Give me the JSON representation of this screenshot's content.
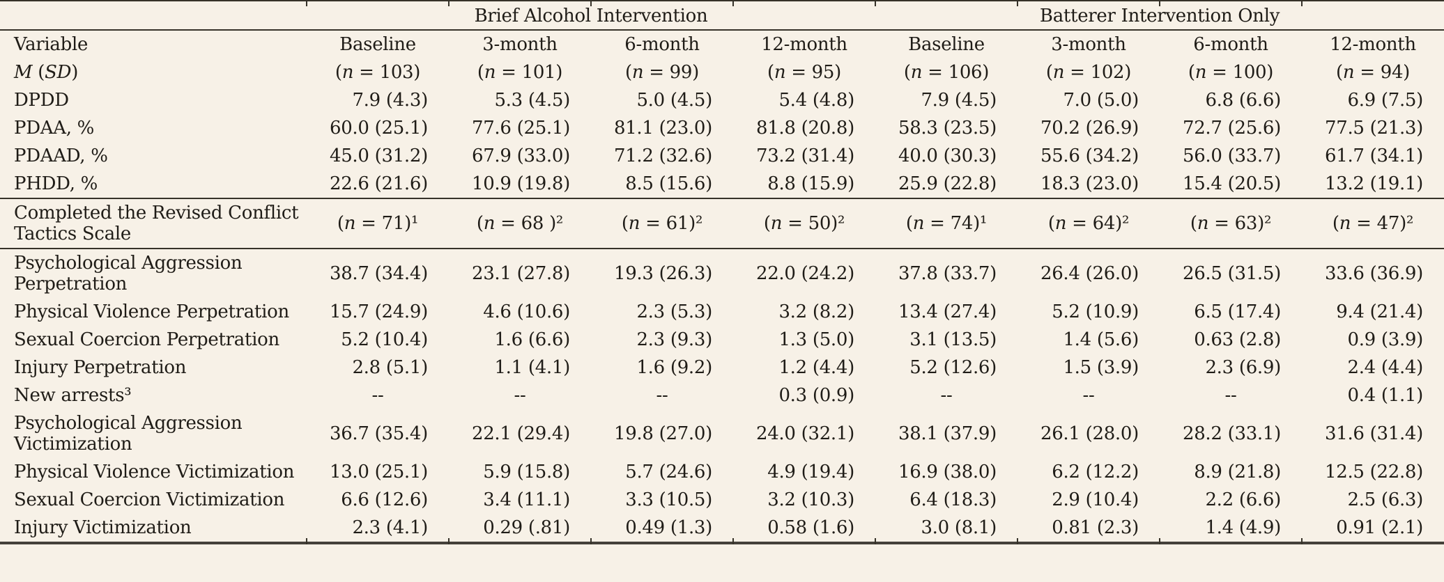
{
  "colors": {
    "background": "#f7f1e7",
    "text": "#1f1c17",
    "rule": "#363229"
  },
  "table": {
    "group_headers": [
      {
        "label": "Brief Alcohol Intervention",
        "span": 4
      },
      {
        "label": "Batterer Intervention Only",
        "span": 4
      }
    ],
    "column_headers": [
      "Variable",
      "Baseline",
      "3-month",
      "6-month",
      "12-month",
      "Baseline",
      "3-month",
      "6-month",
      "12-month"
    ],
    "rows": [
      {
        "label": "*M* (*SD*)",
        "align": "center",
        "cells": [
          "(*n* = 103)",
          "(*n* = 101)",
          "(*n* = 99)",
          "(*n* = 95)",
          "(*n* = 106)",
          "(*n* = 102)",
          "(*n* = 100)",
          "(*n* = 94)"
        ]
      },
      {
        "label": "DPDD",
        "cells": [
          "7.9 (4.3)",
          "5.3 (4.5)",
          "5.0 (4.5)",
          "5.4 (4.8)",
          "7.9 (4.5)",
          "7.0 (5.0)",
          "6.8 (6.6)",
          "6.9 (7.5)"
        ]
      },
      {
        "label": "PDAA, %",
        "cells": [
          "60.0 (25.1)",
          "77.6 (25.1)",
          "81.1 (23.0)",
          "81.8 (20.8)",
          "58.3 (23.5)",
          "70.2 (26.9)",
          "72.7 (25.6)",
          "77.5 (21.3)"
        ]
      },
      {
        "label": "PDAAD, %",
        "cells": [
          "45.0 (31.2)",
          "67.9 (33.0)",
          "71.2 (32.6)",
          "73.2 (31.4)",
          "40.0 (30.3)",
          "55.6 (34.2)",
          "56.0 (33.7)",
          "61.7 (34.1)"
        ]
      },
      {
        "label": "PHDD, %",
        "cells": [
          "22.6 (21.6)",
          "10.9 (19.8)",
          "8.5 (15.6)",
          "8.8 (15.9)",
          "25.9 (22.8)",
          "18.3 (23.0)",
          "15.4 (20.5)",
          "13.2 (19.1)"
        ]
      },
      {
        "label": "Completed the Revised Conflict Tactics Scale",
        "align": "center",
        "divider": true,
        "cells": [
          "(*n* = 71)¹",
          "(*n* = 68 )²",
          "(*n* = 61)²",
          "(*n* = 50)²",
          "(*n* = 74)¹",
          "(*n* = 64)²",
          "(*n* = 63)²",
          "(*n* = 47)²"
        ]
      },
      {
        "label": "Psychological Aggression Perpetration",
        "cells": [
          "38.7 (34.4)",
          "23.1 (27.8)",
          "19.3 (26.3)",
          "22.0 (24.2)",
          "37.8 (33.7)",
          "26.4 (26.0)",
          "26.5 (31.5)",
          "33.6 (36.9)"
        ]
      },
      {
        "label": "Physical Violence Perpetration",
        "cells": [
          "15.7 (24.9)",
          "4.6 (10.6)",
          "2.3 (5.3)",
          "3.2 (8.2)",
          "13.4 (27.4)",
          "5.2 (10.9)",
          "6.5 (17.4)",
          "9.4 (21.4)"
        ]
      },
      {
        "label": "Sexual Coercion Perpetration",
        "cells": [
          "5.2 (10.4)",
          "1.6 (6.6)",
          "2.3 (9.3)",
          "1.3 (5.0)",
          "3.1 (13.5)",
          "1.4 (5.6)",
          "0.63 (2.8)",
          "0.9 (3.9)"
        ]
      },
      {
        "label": "Injury Perpetration",
        "cells": [
          "2.8 (5.1)",
          "1.1 (4.1)",
          "1.6 (9.2)",
          "1.2 (4.4)",
          "5.2 (12.6)",
          "1.5 (3.9)",
          "2.3 (6.9)",
          "2.4 (4.4)"
        ]
      },
      {
        "label": "New arrests³",
        "cells": [
          "--",
          "--",
          "--",
          "0.3 (0.9)",
          "--",
          "--",
          "--",
          "0.4 (1.1)"
        ]
      },
      {
        "label": "Psychological Aggression Victimization",
        "cells": [
          "36.7 (35.4)",
          "22.1 (29.4)",
          "19.8 (27.0)",
          "24.0 (32.1)",
          "38.1 (37.9)",
          "26.1 (28.0)",
          "28.2 (33.1)",
          "31.6 (31.4)"
        ]
      },
      {
        "label": "Physical Violence Victimization",
        "cells": [
          "13.0 (25.1)",
          "5.9 (15.8)",
          "5.7 (24.6)",
          "4.9 (19.4)",
          "16.9 (38.0)",
          "6.2 (12.2)",
          "8.9 (21.8)",
          "12.5 (22.8)"
        ]
      },
      {
        "label": "Sexual Coercion Victimization",
        "cells": [
          "6.6 (12.6)",
          "3.4 (11.1)",
          "3.3 (10.5)",
          "3.2 (10.3)",
          "6.4 (18.3)",
          "2.9 (10.4)",
          "2.2 (6.6)",
          "2.5 (6.3)"
        ]
      },
      {
        "label": "Injury Victimization",
        "cells": [
          "2.3 (4.1)",
          "0.29 (.81)",
          "0.49 (1.3)",
          "0.58 (1.6)",
          "3.0 (8.1)",
          "0.81 (2.3)",
          "1.4 (4.9)",
          "0.91 (2.1)"
        ]
      }
    ]
  }
}
